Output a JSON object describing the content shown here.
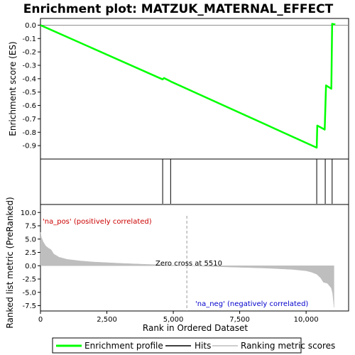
{
  "chart_data": {
    "type": "line",
    "title": "Enrichment plot: MATZUK_MATERNAL_EFFECT",
    "xlabel": "Rank in Ordered Dataset",
    "xlim": [
      0,
      11600
    ],
    "x_ticks": [
      0,
      2500,
      5000,
      7500,
      10000
    ],
    "x_tick_labels": [
      "0",
      "2,500",
      "5,000",
      "7,500",
      "10,000"
    ],
    "top_panel": {
      "ylabel": "Enrichment score (ES)",
      "ylim": [
        -1.0,
        0.05
      ],
      "y_ticks": [
        0.0,
        -0.1,
        -0.2,
        -0.3,
        -0.4,
        -0.5,
        -0.6,
        -0.7,
        -0.8,
        -0.9
      ],
      "y_tick_labels": [
        "0.0",
        "-0.1",
        "-0.2",
        "-0.3",
        "-0.4",
        "-0.5",
        "-0.6",
        "-0.7",
        "-0.8",
        "-0.9"
      ],
      "series": [
        {
          "name": "Enrichment profile",
          "color": "#00ff00",
          "x": [
            0,
            4600,
            4650,
            4900,
            4950,
            10400,
            10420,
            10700,
            10750,
            10950,
            10980,
            11100
          ],
          "y": [
            0.0,
            -0.405,
            -0.395,
            -0.42,
            -0.425,
            -0.915,
            -0.75,
            -0.78,
            -0.45,
            -0.475,
            0.01,
            0.005
          ]
        }
      ]
    },
    "hits_panel": {
      "name": "Hits",
      "hit_positions": [
        4600,
        4900,
        10400,
        10720,
        10980
      ],
      "color_bar_colors": [
        "#d7001e",
        "#f03c46",
        "#ff6e78",
        "#ffaab4",
        "#ffd2f0",
        "#d2d2ff",
        "#aab4ff",
        "#8282ff",
        "#5050f0",
        "#1414c8"
      ]
    },
    "bottom_panel": {
      "ylabel": "Ranked list metric (PreRanked)",
      "ylim": [
        -8.5,
        11.5
      ],
      "y_ticks": [
        10.0,
        7.5,
        5.0,
        2.5,
        0.0,
        -2.5,
        -5.0,
        -7.5
      ],
      "y_tick_labels": [
        "10.0",
        "7.5",
        "5.0",
        "2.5",
        "0.0",
        "-2.5",
        "-5.0",
        "-7.5"
      ],
      "series": [
        {
          "name": "Ranking metric scores",
          "color": "#bebebe",
          "x": [
            0,
            30,
            100,
            200,
            300,
            400,
            500,
            700,
            1000,
            1500,
            2000,
            3000,
            4000,
            5000,
            5510,
            6500,
            7500,
            8500,
            9500,
            10000,
            10200,
            10400,
            10550,
            10650,
            10800,
            10950,
            11000,
            11050
          ],
          "y": [
            6.3,
            5.4,
            4.5,
            3.7,
            3.3,
            3.0,
            2.2,
            1.6,
            1.2,
            0.9,
            0.7,
            0.45,
            0.25,
            0.1,
            0.0,
            -0.15,
            -0.3,
            -0.45,
            -0.7,
            -0.95,
            -1.2,
            -1.6,
            -2.3,
            -3.1,
            -3.3,
            -4.2,
            -5.2,
            -7.8
          ]
        }
      ],
      "zero_cross_x": 5510
    },
    "annotations": {
      "pos_label": "'na_pos' (positively correlated)",
      "neg_label": "'na_neg' (negatively correlated)",
      "zero_cross": "Zero cross at 5510"
    },
    "legend": {
      "placement": "bottom",
      "items": [
        {
          "label": "Enrichment profile",
          "color": "#00ff00"
        },
        {
          "label": "Hits",
          "color": "#000000"
        },
        {
          "label": "Ranking metric scores",
          "color": "#bebebe"
        }
      ]
    }
  }
}
